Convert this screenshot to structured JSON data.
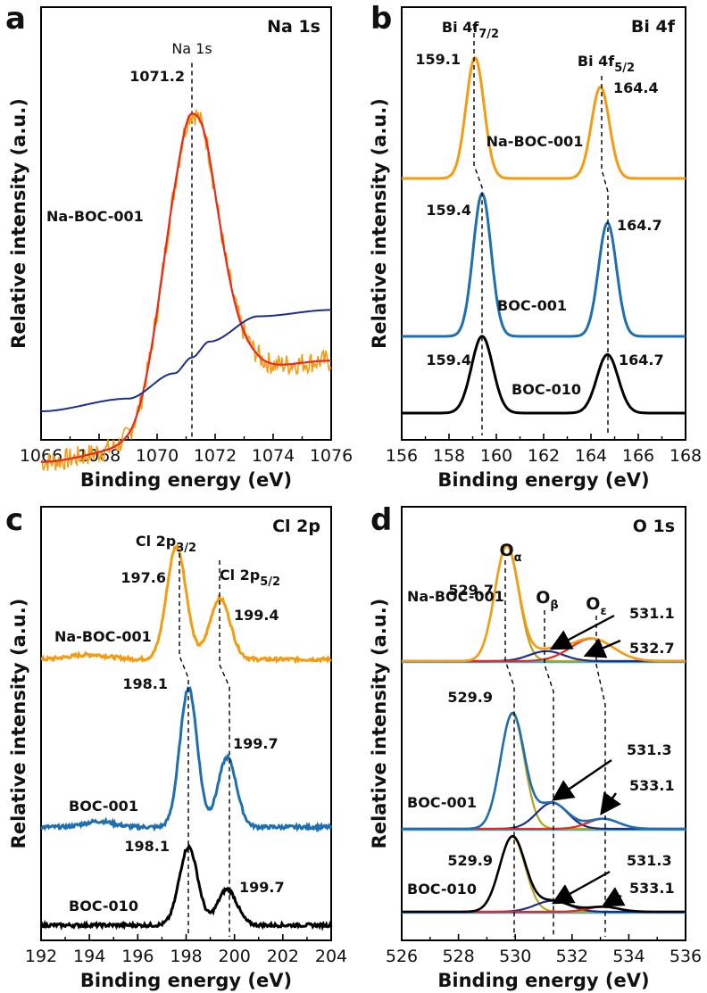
{
  "chart_data": [
    {
      "type": "line",
      "panel": "a",
      "title": "Na 1s",
      "xlabel": "Binding energy (eV)",
      "ylabel": "Relative intensity (a.u.)",
      "xlim": [
        1066,
        1076
      ],
      "xticks": [
        "1066",
        "1068",
        "1070",
        "1072",
        "1074",
        "1076"
      ],
      "sample": "Na-BOC-001",
      "peak_label": "Na 1s",
      "peak_position": "1071.2",
      "series": [
        {
          "name": "raw data",
          "color": "#f39c12",
          "noisy": true,
          "background": {
            "x": [
              1066,
              1069,
              1070.6,
              1071.2,
              1071.8,
              1073.5,
              1076
            ],
            "y": [
              0.08,
              0.12,
              0.2,
              0.25,
              0.3,
              0.38,
              0.4
            ]
          },
          "peaks": [
            {
              "center": 1071.2,
              "height": 0.93,
              "width": 0.9
            }
          ]
        },
        {
          "name": "fitted envelope",
          "color": "#e52b1e",
          "background": {
            "x": [
              1066,
              1069,
              1070.6,
              1071.2,
              1071.8,
              1073.5,
              1076
            ],
            "y": [
              0.08,
              0.12,
              0.2,
              0.25,
              0.3,
              0.38,
              0.4
            ]
          },
          "peaks": [
            {
              "center": 1071.2,
              "height": 0.93,
              "width": 0.9
            }
          ]
        },
        {
          "name": "background",
          "color": "#1a2f8a",
          "background": {
            "x": [
              1066,
              1069,
              1070.6,
              1071.2,
              1071.8,
              1073.5,
              1076
            ],
            "y": [
              0.08,
              0.12,
              0.2,
              0.25,
              0.3,
              0.38,
              0.4
            ]
          },
          "peaks": []
        }
      ]
    },
    {
      "type": "line",
      "panel": "b",
      "title": "Bi 4f",
      "xlabel": "Binding energy (eV)",
      "ylabel": "Relative intensity (a.u.)",
      "xlim": [
        156,
        168
      ],
      "xticks": [
        "156",
        "158",
        "160",
        "162",
        "164",
        "166",
        "168"
      ],
      "peak_labels": [
        "Bi 4f",
        "Bi 4f"
      ],
      "peak_label_subs": [
        "7/2",
        "5/2"
      ],
      "series": [
        {
          "name": "Na-BOC-001",
          "color": "#f39c12",
          "baseline": 3.4,
          "peaks": [
            {
              "center": 159.1,
              "height": 1.65,
              "width": 0.38
            },
            {
              "center": 164.4,
              "height": 1.25,
              "width": 0.38
            }
          ],
          "peak_values": [
            "159.1",
            "164.4"
          ]
        },
        {
          "name": "BOC-001",
          "color": "#1f6fb0",
          "baseline": 1.7,
          "peaks": [
            {
              "center": 159.4,
              "height": 1.95,
              "width": 0.38
            },
            {
              "center": 164.7,
              "height": 1.55,
              "width": 0.38
            }
          ],
          "peak_values": [
            "159.4",
            "164.7"
          ]
        },
        {
          "name": "BOC-010",
          "color": "#000000",
          "baseline": 0.0,
          "peaks": [
            {
              "center": 159.4,
              "height": 1.05,
              "width": 0.45
            },
            {
              "center": 164.7,
              "height": 0.8,
              "width": 0.45
            }
          ],
          "peak_values": [
            "159.4",
            "164.7"
          ]
        }
      ]
    },
    {
      "type": "line",
      "panel": "c",
      "title": "Cl 2p",
      "xlabel": "Binding energy (eV)",
      "ylabel": "Relative intensity (a.u.)",
      "xlim": [
        192,
        204
      ],
      "xticks": [
        "192",
        "194",
        "196",
        "198",
        "200",
        "202",
        "204"
      ],
      "peak_labels": [
        "Cl 2p",
        "Cl 2p"
      ],
      "peak_label_subs": [
        "3/2",
        "5/2"
      ],
      "series": [
        {
          "name": "Na-BOC-001",
          "color": "#f39c12",
          "baseline": 4.0,
          "noisy": true,
          "peaks": [
            {
              "center": 197.6,
              "height": 1.95,
              "width": 0.4
            },
            {
              "center": 199.4,
              "height": 1.05,
              "width": 0.42
            },
            {
              "center": 194.0,
              "height": 0.08,
              "width": 0.8
            }
          ],
          "peak_values": [
            "197.6",
            "199.4"
          ]
        },
        {
          "name": "BOC-001",
          "color": "#1f6fb0",
          "baseline": 1.9,
          "noisy": true,
          "peaks": [
            {
              "center": 198.1,
              "height": 2.4,
              "width": 0.36
            },
            {
              "center": 199.7,
              "height": 1.2,
              "width": 0.38
            },
            {
              "center": 194.4,
              "height": 0.1,
              "width": 0.6
            }
          ],
          "peak_values": [
            "198.1",
            "199.7"
          ]
        },
        {
          "name": "BOC-010",
          "color": "#000000",
          "baseline": 0.0,
          "noisy": true,
          "peaks": [
            {
              "center": 198.1,
              "height": 1.35,
              "width": 0.38
            },
            {
              "center": 199.7,
              "height": 0.62,
              "width": 0.4
            }
          ],
          "peak_values": [
            "198.1",
            "199.7"
          ]
        }
      ]
    },
    {
      "type": "line",
      "panel": "d",
      "title": "O 1s",
      "xlabel": "Binding energy (eV)",
      "ylabel": "Relative intensity (a.u.)",
      "xlim": [
        526,
        536
      ],
      "xticks": [
        "526",
        "528",
        "530",
        "532",
        "534",
        "536"
      ],
      "component_labels": [
        "O",
        "O",
        "O"
      ],
      "component_subs": [
        "α",
        "β",
        "ε"
      ],
      "series": [
        {
          "name": "Na-BOC-001",
          "color": "#f39c12",
          "baseline": 3.8,
          "components": [
            {
              "center": 529.7,
              "height": 2.3,
              "width": 0.42,
              "color": "#b5a41c"
            },
            {
              "center": 531.1,
              "height": 0.2,
              "width": 0.6,
              "color": "#1a2f8a"
            },
            {
              "center": 532.7,
              "height": 0.45,
              "width": 0.75,
              "color": "#e52b1e"
            }
          ],
          "peak_values": [
            "529.7",
            "531.1",
            "532.7"
          ]
        },
        {
          "name": "BOC-001",
          "color": "#1f6fb0",
          "baseline": 1.9,
          "components": [
            {
              "center": 529.9,
              "height": 2.3,
              "width": 0.42,
              "color": "#b5a41c"
            },
            {
              "center": 531.3,
              "height": 0.52,
              "width": 0.55,
              "color": "#1a2f8a"
            },
            {
              "center": 533.1,
              "height": 0.2,
              "width": 0.55,
              "color": "#e52b1e"
            }
          ],
          "peak_values": [
            "529.9",
            "531.3",
            "533.1"
          ]
        },
        {
          "name": "BOC-010",
          "color": "#000000",
          "baseline": 0.0,
          "components": [
            {
              "center": 529.9,
              "height": 1.5,
              "width": 0.45,
              "color": "#b5a41c"
            },
            {
              "center": 531.3,
              "height": 0.22,
              "width": 0.6,
              "color": "#1a2f8a"
            },
            {
              "center": 533.1,
              "height": 0.1,
              "width": 0.55,
              "color": "#e52b1e"
            }
          ],
          "peak_values": [
            "529.9",
            "531.3",
            "533.1"
          ]
        }
      ]
    }
  ]
}
